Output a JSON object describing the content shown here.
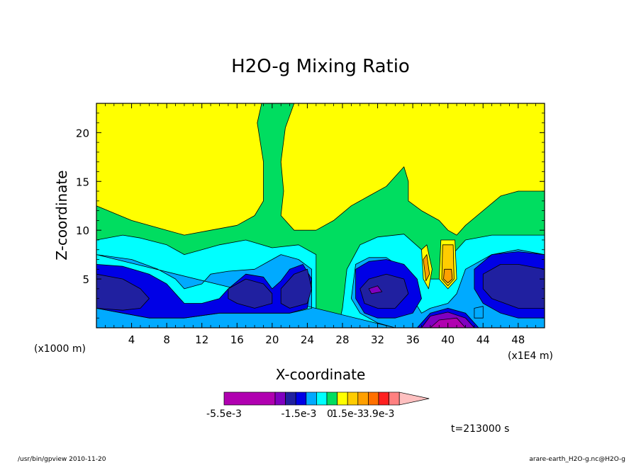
{
  "chart_data": {
    "type": "heatmap",
    "title": "H2O-g Mixing Ratio",
    "xlabel": "X-coordinate",
    "ylabel": "Z-coordinate",
    "x_unit": "(x1E4 m)",
    "y_unit": "(x1000 m)",
    "xlim": [
      0,
      51
    ],
    "ylim": [
      0,
      23
    ],
    "x_ticks": [
      4,
      8,
      12,
      16,
      20,
      24,
      28,
      32,
      36,
      40,
      44,
      48
    ],
    "y_ticks": [
      5,
      10,
      15,
      20
    ],
    "grid": false,
    "colorbar": {
      "colors": [
        "#b000b0",
        "#8000c0",
        "#2020a0",
        "#0000e6",
        "#00aaff",
        "#00ffff",
        "#00dd60",
        "#ffff00",
        "#ffcc00",
        "#ffa000",
        "#ff7000",
        "#ff2020",
        "#ff8080",
        "#ffc0c0"
      ],
      "labels": [
        "-5.5e-3",
        "-1.5e-3",
        "0",
        "1.5e-3",
        "3.9e-3"
      ],
      "label_positions": [
        0,
        5,
        6,
        8,
        11
      ]
    },
    "regions": [
      {
        "level": "#00dd60",
        "points": [
          [
            0,
            12.5
          ],
          [
            4,
            11
          ],
          [
            8,
            10
          ],
          [
            10,
            9.5
          ],
          [
            13,
            10
          ],
          [
            16,
            10.5
          ],
          [
            18,
            11.5
          ],
          [
            19,
            13
          ],
          [
            19,
            17
          ],
          [
            18.3,
            21
          ],
          [
            18.8,
            23
          ],
          [
            22.5,
            23
          ],
          [
            21.5,
            20.5
          ],
          [
            21,
            17
          ],
          [
            21.3,
            14
          ],
          [
            21,
            11.5
          ],
          [
            22.5,
            10
          ],
          [
            25,
            10
          ],
          [
            27,
            11
          ],
          [
            29,
            12.5
          ],
          [
            31,
            13.5
          ],
          [
            33,
            14.5
          ],
          [
            35,
            16.5
          ],
          [
            35.5,
            15
          ],
          [
            35.5,
            13
          ],
          [
            37,
            12
          ],
          [
            38,
            11.5
          ],
          [
            39,
            11
          ],
          [
            40,
            10
          ],
          [
            41,
            9.5
          ],
          [
            42,
            10.5
          ],
          [
            44,
            12
          ],
          [
            46,
            13.5
          ],
          [
            48,
            14
          ],
          [
            51,
            14
          ],
          [
            51,
            0
          ],
          [
            0,
            0
          ]
        ]
      },
      {
        "level": "#00ffff",
        "points": [
          [
            0,
            9
          ],
          [
            3,
            9.5
          ],
          [
            5,
            9.2
          ],
          [
            8,
            8.5
          ],
          [
            10,
            7.5
          ],
          [
            12,
            8
          ],
          [
            14,
            8.5
          ],
          [
            17,
            9
          ],
          [
            20,
            8.2
          ],
          [
            23,
            8.5
          ],
          [
            25,
            7.5
          ],
          [
            25,
            2
          ],
          [
            24.5,
            1
          ],
          [
            26,
            0
          ],
          [
            27.5,
            0
          ],
          [
            28,
            2
          ],
          [
            28.5,
            6
          ],
          [
            30,
            8.5
          ],
          [
            32,
            9.3
          ],
          [
            35,
            9.6
          ],
          [
            37,
            8
          ],
          [
            38,
            6
          ],
          [
            38,
            5
          ],
          [
            40,
            5
          ],
          [
            40.5,
            7.5
          ],
          [
            42,
            9
          ],
          [
            45,
            9.5
          ],
          [
            48,
            9.5
          ],
          [
            51,
            9.5
          ],
          [
            51,
            0
          ],
          [
            0,
            0
          ]
        ]
      },
      {
        "level": "#00aaff",
        "points": [
          [
            0,
            7.5
          ],
          [
            4,
            7
          ],
          [
            7,
            6
          ],
          [
            9,
            5
          ],
          [
            10,
            4
          ],
          [
            12,
            4.5
          ],
          [
            13,
            5.5
          ],
          [
            15,
            5.8
          ],
          [
            18,
            6
          ],
          [
            20,
            7
          ],
          [
            21,
            7.5
          ],
          [
            23,
            7
          ],
          [
            24.5,
            6
          ],
          [
            24.5,
            2
          ],
          [
            22,
            1.5
          ],
          [
            18,
            1.5
          ],
          [
            14,
            1.5
          ],
          [
            10,
            1
          ],
          [
            6,
            1
          ],
          [
            3,
            1.5
          ],
          [
            0,
            2
          ],
          [
            0,
            0
          ],
          [
            51,
            0
          ],
          [
            51,
            7.5
          ],
          [
            48,
            8
          ],
          [
            45,
            7.5
          ],
          [
            42,
            6
          ],
          [
            41,
            3.5
          ],
          [
            40,
            2.5
          ],
          [
            38,
            2
          ],
          [
            37,
            1.5
          ],
          [
            36,
            3
          ],
          [
            35,
            6
          ],
          [
            33,
            7.2
          ],
          [
            31,
            7.2
          ],
          [
            29.5,
            6.5
          ],
          [
            29,
            3
          ],
          [
            30,
            1.5
          ],
          [
            32,
            0.5
          ],
          [
            34,
            0
          ]
        ]
      },
      {
        "level": "#0000e6",
        "points": [
          [
            0,
            6.5
          ],
          [
            3,
            6.3
          ],
          [
            6,
            5.5
          ],
          [
            8,
            4.5
          ],
          [
            9,
            3.5
          ],
          [
            10,
            2.5
          ],
          [
            12,
            2.5
          ],
          [
            14,
            3
          ],
          [
            15,
            4
          ],
          [
            17,
            5.5
          ],
          [
            19,
            5.2
          ],
          [
            20,
            4
          ],
          [
            21,
            4.8
          ],
          [
            22,
            6
          ],
          [
            23.5,
            6.5
          ],
          [
            24.5,
            5
          ],
          [
            24,
            2
          ],
          [
            22,
            1.5
          ],
          [
            18,
            1.5
          ],
          [
            14,
            1.5
          ],
          [
            10,
            1
          ],
          [
            6,
            1
          ],
          [
            3,
            1.5
          ],
          [
            0,
            2
          ]
        ]
      },
      {
        "level": "#0000e6",
        "points": [
          [
            29.5,
            6
          ],
          [
            31,
            6.8
          ],
          [
            33,
            7
          ],
          [
            35,
            6.5
          ],
          [
            36.5,
            5
          ],
          [
            37,
            3
          ],
          [
            36,
            1.5
          ],
          [
            34,
            1
          ],
          [
            32,
            1
          ],
          [
            30.5,
            1.5
          ],
          [
            29.5,
            3
          ]
        ]
      },
      {
        "level": "#0000e6",
        "points": [
          [
            43,
            6
          ],
          [
            45,
            7.5
          ],
          [
            48,
            7.8
          ],
          [
            51,
            7.5
          ],
          [
            51,
            1
          ],
          [
            48,
            1
          ],
          [
            46,
            1.5
          ],
          [
            44,
            2.5
          ],
          [
            43,
            4
          ]
        ]
      },
      {
        "level": "#2020a0",
        "points": [
          [
            0,
            5.5
          ],
          [
            3,
            5
          ],
          [
            5,
            4
          ],
          [
            6,
            3
          ],
          [
            5,
            2
          ],
          [
            3,
            1.8
          ],
          [
            0,
            2
          ]
        ]
      },
      {
        "level": "#2020a0",
        "points": [
          [
            15,
            4
          ],
          [
            17,
            5
          ],
          [
            19,
            4.5
          ],
          [
            20,
            3.5
          ],
          [
            20,
            2.5
          ],
          [
            18,
            2
          ],
          [
            16,
            2.5
          ],
          [
            15,
            3
          ]
        ]
      },
      {
        "level": "#2020a0",
        "points": [
          [
            21,
            4
          ],
          [
            22.5,
            5.5
          ],
          [
            24,
            6
          ],
          [
            24.5,
            4
          ],
          [
            24,
            2.5
          ],
          [
            22,
            2
          ],
          [
            21,
            2.5
          ]
        ]
      },
      {
        "level": "#2020a0",
        "points": [
          [
            30,
            4
          ],
          [
            31,
            5
          ],
          [
            33,
            5.5
          ],
          [
            35,
            5
          ],
          [
            35.5,
            3.5
          ],
          [
            34,
            2
          ],
          [
            32,
            2
          ],
          [
            30.5,
            2.5
          ]
        ]
      },
      {
        "level": "#2020a0",
        "points": [
          [
            44,
            5.5
          ],
          [
            46,
            6.5
          ],
          [
            48,
            6.5
          ],
          [
            51,
            6
          ],
          [
            51,
            2
          ],
          [
            48,
            2
          ],
          [
            45,
            3
          ],
          [
            44,
            4
          ]
        ]
      },
      {
        "level": "#8000c0",
        "points": [
          [
            31,
            4
          ],
          [
            32,
            4.3
          ],
          [
            32.5,
            3.7
          ],
          [
            31.3,
            3.5
          ]
        ]
      },
      {
        "level": "#0000e6",
        "points": [
          [
            36.5,
            0
          ],
          [
            38,
            1.5
          ],
          [
            40,
            2
          ],
          [
            42,
            1.5
          ],
          [
            43.5,
            0
          ]
        ]
      },
      {
        "level": "#8000c0",
        "points": [
          [
            37,
            0
          ],
          [
            38,
            1.2
          ],
          [
            40,
            1.6
          ],
          [
            42,
            1
          ],
          [
            43,
            0
          ]
        ]
      },
      {
        "level": "#b000b0",
        "points": [
          [
            38,
            0
          ],
          [
            39,
            0.8
          ],
          [
            41,
            1
          ],
          [
            42,
            0
          ]
        ]
      },
      {
        "level": "#00aaff",
        "points": [
          [
            43,
            2
          ],
          [
            44,
            2.2
          ],
          [
            44,
            1
          ],
          [
            43,
            1
          ]
        ]
      },
      {
        "level": "#ffff00",
        "points": [
          [
            39.2,
            9
          ],
          [
            40.8,
            9
          ],
          [
            41,
            5
          ],
          [
            40,
            4
          ],
          [
            39,
            5
          ]
        ]
      },
      {
        "level": "#ffcc00",
        "points": [
          [
            39.4,
            8.5
          ],
          [
            40.6,
            8.5
          ],
          [
            40.7,
            5
          ],
          [
            40,
            4.3
          ],
          [
            39.3,
            5
          ]
        ]
      },
      {
        "level": "#ffa000",
        "points": [
          [
            39.6,
            6
          ],
          [
            40.4,
            6
          ],
          [
            40.5,
            5
          ],
          [
            40,
            4.6
          ],
          [
            39.5,
            5
          ]
        ]
      },
      {
        "level": "#ffff00",
        "points": [
          [
            37,
            8
          ],
          [
            37.6,
            8.5
          ],
          [
            38.2,
            6
          ],
          [
            37.8,
            4
          ],
          [
            37.2,
            5
          ]
        ]
      },
      {
        "level": "#ffa000",
        "points": [
          [
            37.2,
            7
          ],
          [
            37.6,
            7.5
          ],
          [
            37.9,
            5.5
          ],
          [
            37.5,
            4.8
          ]
        ]
      }
    ],
    "annotation": "t=213000 s"
  },
  "footer": {
    "left": "/usr/bin/gpview   2010-11-20",
    "right": "arare-earth_H2O-g.nc@H2O-g"
  }
}
